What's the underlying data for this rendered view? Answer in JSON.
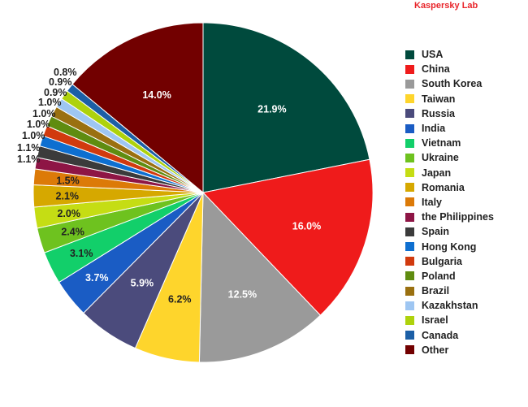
{
  "brand": "Kaspersky Lab",
  "chart_data": {
    "type": "pie",
    "title": "",
    "start_angle_deg": 0,
    "direction": "clockwise",
    "legend_position": "right",
    "categories": [
      "USA",
      "China",
      "South Korea",
      "Taiwan",
      "Russia",
      "India",
      "Vietnam",
      "Ukraine",
      "Japan",
      "Romania",
      "Italy",
      "the Philippines",
      "Spain",
      "Hong Kong",
      "Bulgaria",
      "Poland",
      "Brazil",
      "Kazakhstan",
      "Israel",
      "Canada",
      "Other"
    ],
    "values": [
      21.9,
      16.0,
      12.5,
      6.2,
      5.9,
      3.7,
      3.1,
      2.4,
      2.0,
      2.1,
      1.5,
      1.1,
      1.1,
      1.0,
      1.0,
      1.0,
      1.0,
      0.9,
      0.9,
      0.8,
      14.0
    ],
    "labels": [
      "21.9%",
      "16.0%",
      "12.5%",
      "6.2%",
      "5.9%",
      "3.7%",
      "3.1%",
      "2.4%",
      "2.0%",
      "2.1%",
      "1.5%",
      "1.1%",
      "1.1%",
      "1.0%",
      "1.0%",
      "1.0%",
      "1.0%",
      "0.9%",
      "0.9%",
      "0.8%",
      "14.0%"
    ],
    "colors": [
      "#004a3d",
      "#ef1b1b",
      "#9a9a9a",
      "#fed52c",
      "#4b4b7c",
      "#1a5cc4",
      "#12cf6a",
      "#6ec21f",
      "#c5dd14",
      "#d6a800",
      "#dc7a08",
      "#8e1545",
      "#3b3b3b",
      "#0e6fd0",
      "#d13a0e",
      "#5f8c10",
      "#9a7010",
      "#9ec6f2",
      "#aed20c",
      "#1c5fa6",
      "#720000"
    ],
    "label_colors": [
      "#ffffff",
      "#ffffff",
      "#ffffff",
      "#222222",
      "#ffffff",
      "#ffffff",
      "#222222",
      "#222222",
      "#222222",
      "#222222",
      "#222222",
      "#222222",
      "#222222",
      "#222222",
      "#222222",
      "#222222",
      "#222222",
      "#222222",
      "#222222",
      "#222222",
      "#ffffff"
    ]
  }
}
